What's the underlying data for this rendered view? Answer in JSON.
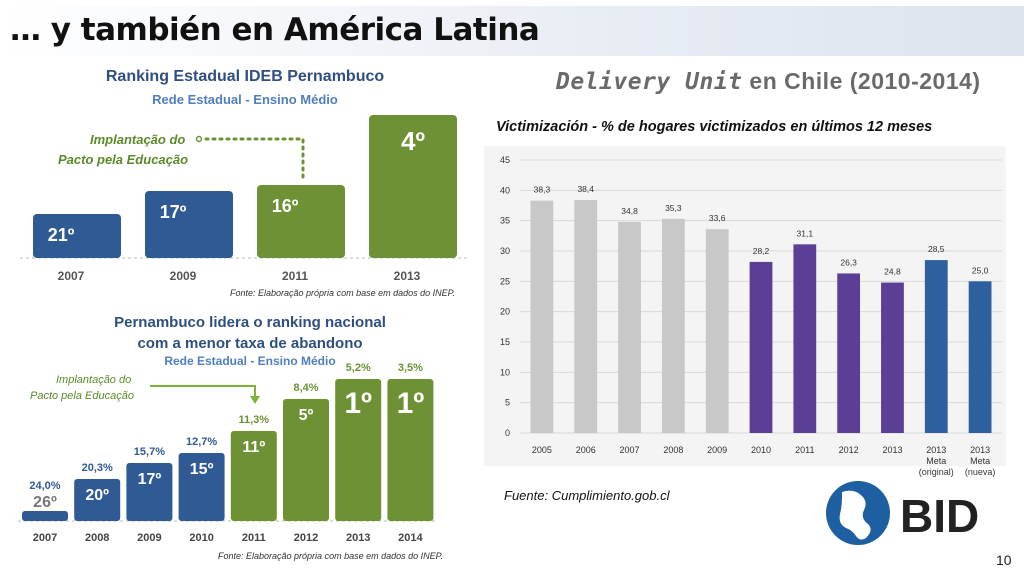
{
  "slide": {
    "title": "… y también en América Latina",
    "page_number": "10",
    "logo_text": "BID"
  },
  "chart_data": [
    {
      "type": "bar",
      "title": "Ranking Estadual IDEB Pernambuco",
      "subtitle": "Rede Estadual - Ensino Médio",
      "categories": [
        "2007",
        "2009",
        "2011",
        "2013"
      ],
      "series": [
        {
          "labels": [
            "21º",
            "17º",
            "16º",
            "4º"
          ],
          "values": [
            21,
            17,
            16,
            4
          ],
          "colors": [
            "#2f5a93",
            "#2f5a93",
            "#6f9136",
            "#6f9136"
          ]
        }
      ],
      "annotation": "Implantação do Pacto pela Educação",
      "annotation_lines": [
        "Implantação do",
        "Pacto pela Educação"
      ],
      "source": "Fonte: Elaboração própria com base em dados do INEP.",
      "grid": false
    },
    {
      "type": "bar",
      "title_lines": [
        "Pernambuco lidera o ranking nacional",
        "com a menor taxa de abandono"
      ],
      "subtitle": "Rede Estadual - Ensino Médio",
      "categories": [
        "2007",
        "2008",
        "2009",
        "2010",
        "2011",
        "2012",
        "2013",
        "2014"
      ],
      "series": [
        {
          "ranks": [
            "26º",
            "20º",
            "17º",
            "15º",
            "11º",
            "5º",
            "1º",
            "1º"
          ],
          "rates": [
            "24,0%",
            "20,3%",
            "15,7%",
            "12,7%",
            "11,3%",
            "8,4%",
            "5,2%",
            "3,5%"
          ],
          "rate_values": [
            24.0,
            20.3,
            15.7,
            12.7,
            11.3,
            8.4,
            5.2,
            3.5
          ],
          "colors": [
            "#2f5a93",
            "#2f5a93",
            "#2f5a93",
            "#2f5a93",
            "#6f9136",
            "#6f9136",
            "#6f9136",
            "#6f9136"
          ]
        }
      ],
      "annotation_lines": [
        "Implantação do",
        "Pacto pela Educação"
      ],
      "source": "Fonte: Elaboração própria com base em dados do INEP.",
      "grid": false
    },
    {
      "type": "bar",
      "heading": "Delivery Unit en Chile (2010-2014)",
      "heading_em": "Delivery Unit",
      "heading_rest": " en Chile (2010-2014)",
      "title": "Victimización - % de hogares victimizados en últimos 12 meses",
      "categories": [
        "2005",
        "2006",
        "2007",
        "2008",
        "2009",
        "2010",
        "2011",
        "2012",
        "2013",
        "2013 Meta (original)",
        "2013 Meta (nueva)"
      ],
      "category_lines": [
        [
          "2005"
        ],
        [
          "2006"
        ],
        [
          "2007"
        ],
        [
          "2008"
        ],
        [
          "2009"
        ],
        [
          "2010"
        ],
        [
          "2011"
        ],
        [
          "2012"
        ],
        [
          "2013"
        ],
        [
          "2013",
          "Meta",
          "(original)"
        ],
        [
          "2013",
          "Meta",
          "(nueva)"
        ]
      ],
      "series": [
        {
          "values": [
            38.3,
            38.4,
            34.8,
            35.3,
            33.6,
            28.2,
            31.1,
            26.3,
            24.8,
            28.5,
            25.0
          ],
          "labels": [
            "38,3",
            "38,4",
            "34,8",
            "35,3",
            "33,6",
            "28,2",
            "31,1",
            "26,3",
            "24,8",
            "28,5",
            "25,0"
          ],
          "colors": [
            "#c8c8c8",
            "#c8c8c8",
            "#c8c8c8",
            "#c8c8c8",
            "#c8c8c8",
            "#5b3f94",
            "#5b3f94",
            "#5b3f94",
            "#5b3f94",
            "#2e5f9e",
            "#2e5f9e"
          ]
        }
      ],
      "ylim": [
        0,
        45
      ],
      "yticks": [
        "0",
        "5",
        "10",
        "15",
        "20",
        "25",
        "30",
        "35",
        "40",
        "45"
      ],
      "source": "Fuente: Cumplimiento.gob.cl",
      "grid": true
    }
  ]
}
